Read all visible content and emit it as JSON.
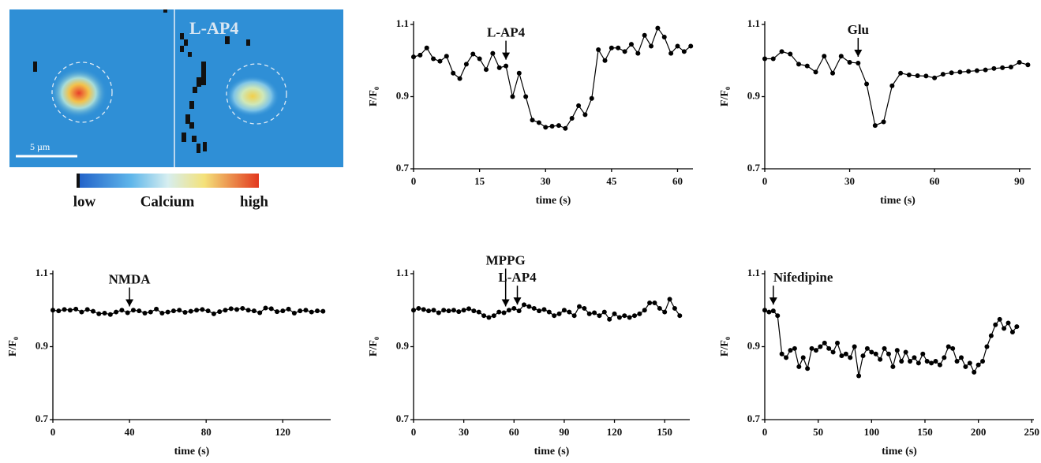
{
  "image_panel": {
    "label": "L-AP4",
    "scale_bar": "5 µm",
    "colorbar": {
      "low": "low",
      "title": "Calcium",
      "high": "high"
    }
  },
  "chart_data": [
    {
      "type": "line",
      "xlabel": "time (s)",
      "ylabel": "F/F₀",
      "annotations": [
        {
          "text": "L-AP4",
          "x": 21
        }
      ],
      "x": [
        0,
        1.5,
        3,
        4.5,
        6,
        7.5,
        9,
        10.5,
        12,
        13.5,
        15,
        16.5,
        18,
        19.5,
        21,
        22.5,
        24,
        25.5,
        27,
        28.5,
        30,
        31.5,
        33,
        34.5,
        36,
        37.5,
        39,
        40.5,
        42,
        43.5,
        45,
        46.5,
        48,
        49.5,
        51,
        52.5,
        54,
        55.5,
        57,
        58.5,
        60,
        61.5,
        63
      ],
      "series": [
        {
          "color": "#000000",
          "values": [
            1.01,
            1.015,
            1.035,
            1.005,
            0.998,
            1.012,
            0.965,
            0.95,
            0.99,
            1.018,
            1.005,
            0.975,
            1.02,
            0.98,
            0.985,
            0.9,
            0.965,
            0.9,
            0.835,
            0.828,
            0.815,
            0.818,
            0.82,
            0.812,
            0.84,
            0.875,
            0.85,
            0.895,
            1.03,
            1.0,
            1.035,
            1.035,
            1.025,
            1.045,
            1.02,
            1.07,
            1.04,
            1.09,
            1.065,
            1.02,
            1.04,
            1.025,
            1.04
          ]
        }
      ],
      "xlim": [
        0,
        63.5
      ],
      "xticks": [
        0,
        15,
        30,
        45,
        60
      ],
      "ylim": [
        0.7,
        1.1
      ],
      "yticks": [
        0.7,
        0.9,
        1.1
      ]
    },
    {
      "type": "line",
      "xlabel": "time (s)",
      "ylabel": "F/F₀",
      "annotations": [
        {
          "text": "Glu",
          "x": 33
        }
      ],
      "x": [
        0,
        3,
        6,
        9,
        12,
        15,
        18,
        21,
        24,
        27,
        30,
        33,
        36,
        39,
        42,
        45,
        48,
        51,
        54,
        57,
        60,
        63,
        66,
        69,
        72,
        75,
        78,
        81,
        84,
        87,
        90,
        93
      ],
      "series": [
        {
          "color": "#000000",
          "values": [
            1.005,
            1.005,
            1.025,
            1.018,
            0.99,
            0.985,
            0.968,
            1.012,
            0.965,
            1.012,
            0.995,
            0.993,
            0.935,
            0.82,
            0.83,
            0.93,
            0.965,
            0.96,
            0.958,
            0.957,
            0.952,
            0.962,
            0.966,
            0.968,
            0.97,
            0.972,
            0.974,
            0.978,
            0.98,
            0.982,
            0.995,
            0.988
          ]
        }
      ],
      "xlim": [
        0,
        94
      ],
      "xticks": [
        0,
        30,
        60,
        90
      ],
      "ylim": [
        0.7,
        1.1
      ],
      "yticks": [
        0.7,
        0.9,
        1.1
      ]
    },
    {
      "type": "line",
      "xlabel": "time (s)",
      "ylabel": "F/F₀",
      "annotations": [
        {
          "text": "NMDA",
          "x": 40
        }
      ],
      "x": [
        0,
        3,
        6,
        9,
        12,
        15,
        18,
        21,
        24,
        27,
        30,
        33,
        36,
        39,
        42,
        45,
        48,
        51,
        54,
        57,
        60,
        63,
        66,
        69,
        72,
        75,
        78,
        81,
        84,
        87,
        90,
        93,
        96,
        99,
        102,
        105,
        108,
        111,
        114,
        117,
        120,
        123,
        126,
        129,
        132,
        135,
        138,
        141
      ],
      "series": [
        {
          "color": "#000000",
          "values": [
            1.0,
            0.998,
            1.002,
            1.0,
            1.003,
            0.995,
            1.002,
            0.997,
            0.99,
            0.992,
            0.988,
            0.995,
            1.0,
            0.993,
            1.0,
            0.998,
            0.992,
            0.995,
            1.003,
            0.992,
            0.995,
            0.998,
            1.0,
            0.994,
            0.997,
            1.0,
            1.002,
            0.998,
            0.99,
            0.996,
            1.0,
            1.004,
            1.002,
            1.005,
            1.0,
            0.998,
            0.993,
            1.006,
            1.004,
            0.996,
            0.998,
            1.003,
            0.992,
            0.998,
            1.0,
            0.995,
            0.998,
            0.997
          ]
        }
      ],
      "xlim": [
        0,
        145
      ],
      "xticks": [
        0,
        40,
        80,
        120
      ],
      "ylim": [
        0.7,
        1.1
      ],
      "yticks": [
        0.7,
        0.9,
        1.1
      ]
    },
    {
      "type": "line",
      "xlabel": "time (s)",
      "ylabel": "F/F₀",
      "annotations": [
        {
          "text": "MPPG",
          "x": 55
        },
        {
          "text": "L-AP4",
          "x": 62
        }
      ],
      "x": [
        0,
        3,
        6,
        9,
        12,
        15,
        18,
        21,
        24,
        27,
        30,
        33,
        36,
        39,
        42,
        45,
        48,
        51,
        54,
        57,
        60,
        63,
        66,
        69,
        72,
        75,
        78,
        81,
        84,
        87,
        90,
        93,
        96,
        99,
        102,
        105,
        108,
        111,
        114,
        117,
        120,
        123,
        126,
        129,
        132,
        135,
        138,
        141,
        144,
        147,
        150,
        153,
        156,
        159
      ],
      "series": [
        {
          "color": "#000000",
          "values": [
            1.0,
            1.005,
            1.002,
            0.998,
            1.0,
            0.993,
            1.0,
            0.998,
            1.0,
            0.996,
            1.0,
            1.004,
            0.998,
            0.995,
            0.985,
            0.98,
            0.985,
            0.995,
            0.993,
            1.0,
            1.005,
            0.998,
            1.015,
            1.01,
            1.005,
            0.998,
            1.002,
            0.995,
            0.985,
            0.99,
            1.0,
            0.995,
            0.985,
            1.01,
            1.005,
            0.99,
            0.993,
            0.985,
            0.995,
            0.975,
            0.99,
            0.98,
            0.985,
            0.98,
            0.985,
            0.99,
            1.0,
            1.02,
            1.02,
            1.005,
            0.995,
            1.03,
            1.005,
            0.985
          ]
        }
      ],
      "xlim": [
        0,
        165
      ],
      "xticks": [
        0,
        30,
        60,
        90,
        120,
        150
      ],
      "ylim": [
        0.7,
        1.1
      ],
      "yticks": [
        0.7,
        0.9,
        1.1
      ]
    },
    {
      "type": "line",
      "xlabel": "time (s)",
      "ylabel": "F/F₀",
      "annotations": [
        {
          "text": "Nifedipine",
          "x": 8
        }
      ],
      "x": [
        0,
        4,
        8,
        12,
        16,
        20,
        24,
        28,
        32,
        36,
        40,
        44,
        48,
        52,
        56,
        60,
        64,
        68,
        72,
        76,
        80,
        84,
        88,
        92,
        96,
        100,
        104,
        108,
        112,
        116,
        120,
        124,
        128,
        132,
        136,
        140,
        144,
        148,
        152,
        156,
        160,
        164,
        168,
        172,
        176,
        180,
        184,
        188,
        192,
        196,
        200,
        204,
        208,
        212,
        216,
        220,
        224,
        228,
        232,
        236
      ],
      "series": [
        {
          "color": "#000000",
          "values": [
            1.0,
            0.995,
            0.998,
            0.985,
            0.88,
            0.87,
            0.89,
            0.895,
            0.845,
            0.87,
            0.84,
            0.895,
            0.89,
            0.9,
            0.91,
            0.895,
            0.885,
            0.91,
            0.875,
            0.88,
            0.87,
            0.9,
            0.82,
            0.875,
            0.895,
            0.885,
            0.88,
            0.865,
            0.895,
            0.88,
            0.845,
            0.89,
            0.86,
            0.885,
            0.86,
            0.87,
            0.855,
            0.88,
            0.86,
            0.855,
            0.86,
            0.85,
            0.87,
            0.9,
            0.895,
            0.86,
            0.87,
            0.845,
            0.855,
            0.83,
            0.85,
            0.86,
            0.9,
            0.93,
            0.96,
            0.975,
            0.95,
            0.965,
            0.94,
            0.955
          ]
        }
      ],
      "xlim": [
        0,
        252
      ],
      "xticks": [
        0,
        50,
        100,
        150,
        200,
        250
      ],
      "ylim": [
        0.7,
        1.1
      ],
      "yticks": [
        0.7,
        0.9,
        1.1
      ]
    }
  ]
}
